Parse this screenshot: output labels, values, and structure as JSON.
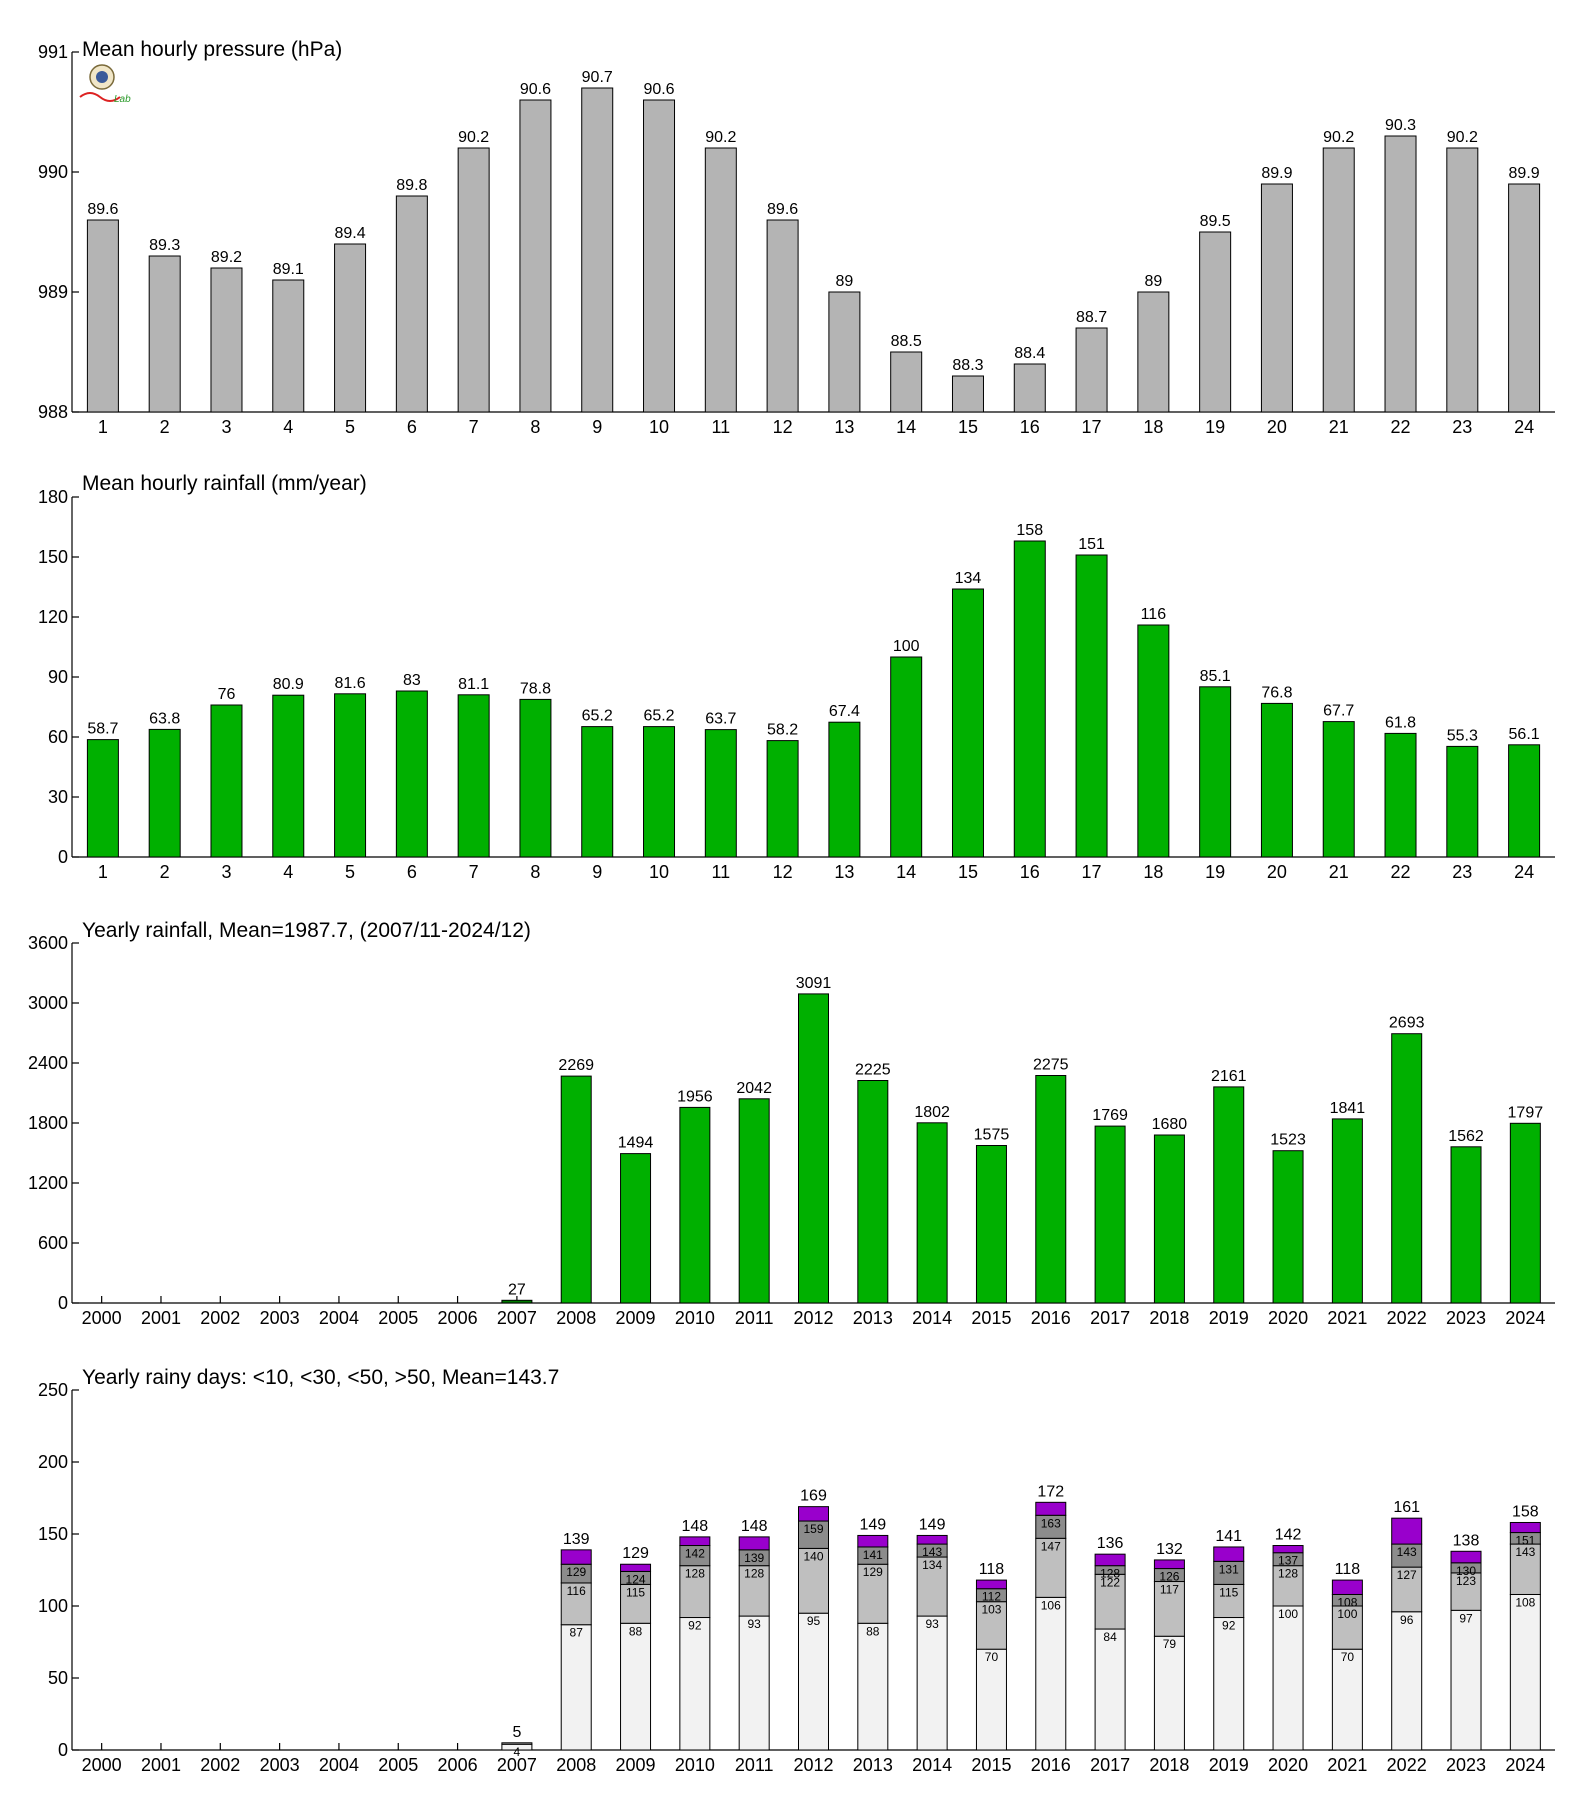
{
  "logo_text": "Lab",
  "colors": {
    "pressure_bar": "#b4b4b4",
    "rainfall_bar": "#00b000",
    "rainfall_bar_2007": "#007a00",
    "days_lt10": "#f2f2f2",
    "days_lt30": "#bfbfbf",
    "days_lt50": "#8c8c8c",
    "days_gt50": "#9900cc"
  },
  "chart_data": [
    {
      "id": "pressure",
      "type": "bar",
      "title": "Mean hourly pressure (hPa)",
      "categories": [
        "1",
        "2",
        "3",
        "4",
        "5",
        "6",
        "7",
        "8",
        "9",
        "10",
        "11",
        "12",
        "13",
        "14",
        "15",
        "16",
        "17",
        "18",
        "19",
        "20",
        "21",
        "22",
        "23",
        "24"
      ],
      "values": [
        989.6,
        989.3,
        989.2,
        989.1,
        989.4,
        989.8,
        990.2,
        990.6,
        990.7,
        990.6,
        990.2,
        989.6,
        989.0,
        988.5,
        988.3,
        988.4,
        988.7,
        989.0,
        989.5,
        989.9,
        990.2,
        990.3,
        990.2,
        989.9
      ],
      "labels": [
        "89.6",
        "89.3",
        "89.2",
        "89.1",
        "89.4",
        "89.8",
        "90.2",
        "90.6",
        "90.7",
        "90.6",
        "90.2",
        "89.6",
        "89",
        "88.5",
        "88.3",
        "88.4",
        "88.7",
        "89",
        "89.5",
        "89.9",
        "90.2",
        "90.3",
        "90.2",
        "89.9"
      ],
      "ylim": [
        988,
        991
      ],
      "yticks": [
        "988",
        "989",
        "990",
        "991"
      ]
    },
    {
      "id": "hourly_rain",
      "type": "bar",
      "title": "Mean hourly rainfall (mm/year)",
      "categories": [
        "1",
        "2",
        "3",
        "4",
        "5",
        "6",
        "7",
        "8",
        "9",
        "10",
        "11",
        "12",
        "13",
        "14",
        "15",
        "16",
        "17",
        "18",
        "19",
        "20",
        "21",
        "22",
        "23",
        "24"
      ],
      "values": [
        58.7,
        63.8,
        76,
        80.9,
        81.6,
        83,
        81.1,
        78.8,
        65.2,
        65.2,
        63.7,
        58.2,
        67.4,
        100,
        134,
        158,
        151,
        116,
        85.1,
        76.8,
        67.7,
        61.8,
        55.3,
        56.1
      ],
      "labels": [
        "58.7",
        "63.8",
        "76",
        "80.9",
        "81.6",
        "83",
        "81.1",
        "78.8",
        "65.2",
        "65.2",
        "63.7",
        "58.2",
        "67.4",
        "100",
        "134",
        "158",
        "151",
        "116",
        "85.1",
        "76.8",
        "67.7",
        "61.8",
        "55.3",
        "56.1"
      ],
      "ylim": [
        0,
        180
      ],
      "yticks": [
        "0",
        "30",
        "60",
        "90",
        "120",
        "150",
        "180"
      ]
    },
    {
      "id": "yearly_rain",
      "type": "bar",
      "title": "Yearly rainfall, Mean=1987.7, (2007/11-2024/12)",
      "categories": [
        "2000",
        "2001",
        "2002",
        "2003",
        "2004",
        "2005",
        "2006",
        "2007",
        "2008",
        "2009",
        "2010",
        "2011",
        "2012",
        "2013",
        "2014",
        "2015",
        "2016",
        "2017",
        "2018",
        "2019",
        "2020",
        "2021",
        "2022",
        "2023",
        "2024"
      ],
      "values": [
        null,
        null,
        null,
        null,
        null,
        null,
        null,
        27,
        2269,
        1494,
        1956,
        2042,
        3091,
        2225,
        1802,
        1575,
        2275,
        1769,
        1680,
        2161,
        1523,
        1841,
        2693,
        1562,
        1797
      ],
      "labels": [
        "",
        "",
        "",
        "",
        "",
        "",
        "",
        "27",
        "2269",
        "1494",
        "1956",
        "2042",
        "3091",
        "2225",
        "1802",
        "1575",
        "2275",
        "1769",
        "1680",
        "2161",
        "1523",
        "1841",
        "2693",
        "1562",
        "1797"
      ],
      "ylim": [
        0,
        3600
      ],
      "yticks": [
        "0",
        "600",
        "1200",
        "1800",
        "2400",
        "3000",
        "3600"
      ]
    },
    {
      "id": "rainy_days",
      "type": "bar",
      "stacked": true,
      "title": "Yearly rainy days: <10, <30, <50, >50, Mean=143.7",
      "categories": [
        "2000",
        "2001",
        "2002",
        "2003",
        "2004",
        "2005",
        "2006",
        "2007",
        "2008",
        "2009",
        "2010",
        "2011",
        "2012",
        "2013",
        "2014",
        "2015",
        "2016",
        "2017",
        "2018",
        "2019",
        "2020",
        "2021",
        "2022",
        "2023",
        "2024"
      ],
      "cumulative": {
        "lt10": [
          null,
          null,
          null,
          null,
          null,
          null,
          null,
          4,
          87,
          88,
          92,
          93,
          95,
          88,
          93,
          70,
          106,
          84,
          79,
          92,
          100,
          70,
          96,
          97,
          108
        ],
        "lt30": [
          null,
          null,
          null,
          null,
          null,
          null,
          null,
          5,
          116,
          115,
          128,
          128,
          140,
          129,
          134,
          103,
          147,
          122,
          117,
          115,
          128,
          100,
          127,
          123,
          143
        ],
        "lt50": [
          null,
          null,
          null,
          null,
          null,
          null,
          null,
          5,
          129,
          124,
          142,
          139,
          159,
          141,
          143,
          112,
          163,
          128,
          126,
          131,
          137,
          108,
          143,
          130,
          151
        ],
        "total": [
          null,
          null,
          null,
          null,
          null,
          null,
          null,
          5,
          139,
          129,
          148,
          148,
          169,
          149,
          149,
          118,
          172,
          136,
          132,
          141,
          142,
          118,
          161,
          138,
          158
        ]
      },
      "seg_labels": {
        "lt10": [
          "",
          "",
          "",
          "",
          "",
          "",
          "",
          "4",
          "87",
          "88",
          "92",
          "93",
          "95",
          "88",
          "93",
          "70",
          "106",
          "84",
          "79",
          "92",
          "100",
          "70",
          "96",
          "97",
          "108"
        ],
        "lt30": [
          "",
          "",
          "",
          "",
          "",
          "",
          "",
          "",
          "116",
          "115",
          "128",
          "128",
          "140",
          "129",
          "134",
          "103",
          "147",
          "122",
          "117",
          "115",
          "128",
          "100",
          "127",
          "123",
          "143"
        ],
        "lt50": [
          "",
          "",
          "",
          "",
          "",
          "",
          "",
          "",
          "129",
          "124",
          "142",
          "139",
          "159",
          "141",
          "143",
          "112",
          "163",
          "128",
          "126",
          "131",
          "137",
          "108",
          "143",
          "130",
          "151"
        ]
      },
      "total_labels": [
        "",
        "",
        "",
        "",
        "",
        "",
        "",
        "5",
        "139",
        "129",
        "148",
        "148",
        "169",
        "149",
        "149",
        "118",
        "172",
        "136",
        "132",
        "141",
        "142",
        "118",
        "161",
        "138",
        "158"
      ],
      "ylim": [
        0,
        250
      ],
      "yticks": [
        "0",
        "50",
        "100",
        "150",
        "200",
        "250"
      ]
    }
  ]
}
